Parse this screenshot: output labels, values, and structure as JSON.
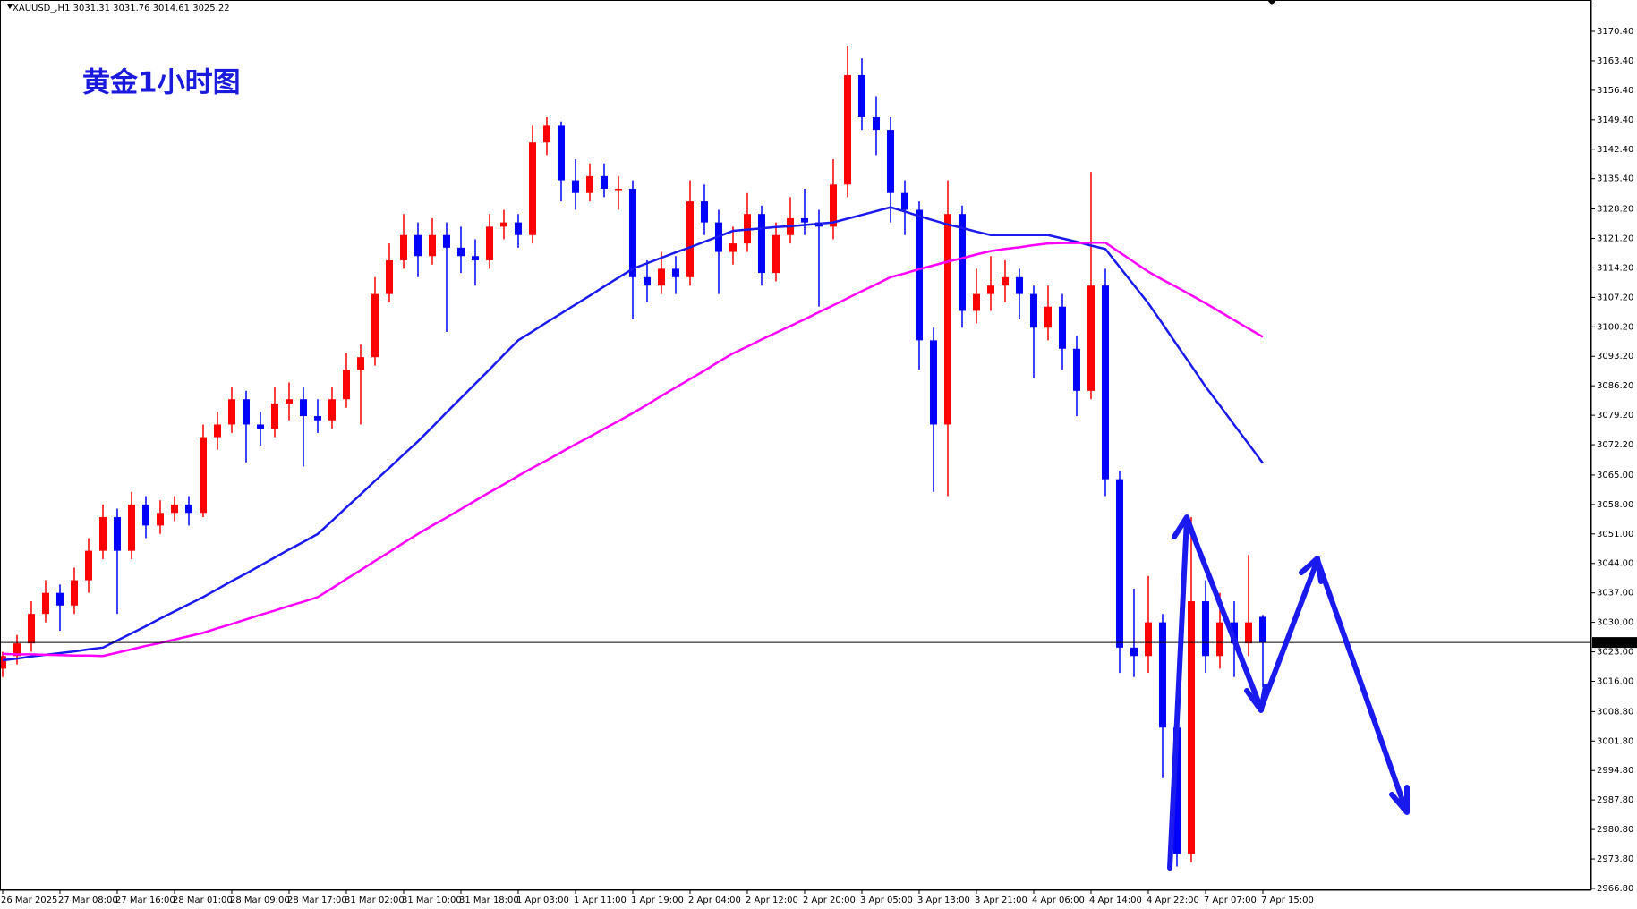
{
  "chart_data": {
    "type": "candlestick",
    "title": "黄金1小时图",
    "header": "XAUUSD_,H1  3031.31 3031.76 3014.61 3025.22",
    "categories": [
      "26 Mar 2025",
      null,
      null,
      null,
      "27 Mar 08:00",
      null,
      null,
      null,
      "27 Mar 16:00",
      null,
      null,
      null,
      "28 Mar 01:00",
      null,
      null,
      null,
      "28 Mar 09:00",
      null,
      null,
      null,
      "28 Mar 17:00",
      null,
      null,
      null,
      "31 Mar 02:00",
      null,
      null,
      null,
      "31 Mar 10:00",
      null,
      null,
      null,
      "31 Mar 18:00",
      null,
      null,
      null,
      "1 Apr 03:00",
      null,
      null,
      null,
      "1 Apr 11:00",
      null,
      null,
      null,
      "1 Apr 19:00",
      null,
      null,
      null,
      "2 Apr 04:00",
      null,
      null,
      null,
      "2 Apr 12:00",
      null,
      null,
      null,
      "2 Apr 20:00",
      null,
      null,
      null,
      "3 Apr 05:00",
      null,
      null,
      null,
      "3 Apr 13:00",
      null,
      null,
      null,
      "3 Apr 21:00",
      null,
      null,
      null,
      "4 Apr 06:00",
      null,
      null,
      null,
      "4 Apr 14:00",
      null,
      null,
      null,
      "4 Apr 22:00",
      null,
      null,
      null,
      "7 Apr 07:00",
      null,
      null,
      null,
      "7 Apr 15:00"
    ],
    "open": [
      3019,
      3022,
      3025,
      3032,
      3037,
      3034,
      3040,
      3047,
      3055,
      3047,
      3058,
      3053,
      3056,
      3058,
      3056,
      3074,
      3077,
      3083,
      3077,
      3076,
      3082,
      3083,
      3079,
      3078,
      3083,
      3090,
      3093,
      3108,
      3116,
      3122,
      3117,
      3122,
      3119,
      3117,
      3116,
      3124,
      3125,
      3122,
      3144,
      3148,
      3135,
      3132,
      3136,
      3133,
      3133,
      3112,
      3110,
      3114,
      3112,
      3130,
      3125,
      3118,
      3120,
      3127,
      3113,
      3122,
      3126,
      3125,
      3124,
      3134,
      3160,
      3150,
      3147,
      3132,
      3128,
      3097,
      3077,
      3127,
      3104,
      3108,
      3110,
      3112,
      3108,
      3100,
      3105,
      3095,
      3085,
      3110,
      3064,
      3024,
      3022,
      3030,
      3005,
      2975,
      3035,
      3022,
      3030,
      3025,
      3031.31
    ],
    "high": [
      3023,
      3027,
      3035,
      3040,
      3039,
      3043,
      3050,
      3058,
      3057,
      3061,
      3060,
      3059,
      3060,
      3060,
      3077,
      3080,
      3086,
      3085,
      3080,
      3086,
      3087,
      3086,
      3083,
      3086,
      3094,
      3096,
      3112,
      3120,
      3127,
      3125,
      3126,
      3125,
      3124,
      3121,
      3127,
      3128,
      3127,
      3148,
      3150,
      3149,
      3140,
      3139,
      3139,
      3136,
      3135,
      3116,
      3118,
      3117,
      3135,
      3134,
      3128,
      3124,
      3132,
      3129,
      3125,
      3131,
      3133,
      3128,
      3140,
      3167,
      3164,
      3155,
      3150,
      3135,
      3130,
      3100,
      3135,
      3129,
      3114,
      3117,
      3116,
      3114,
      3110,
      3110,
      3108,
      3098,
      3137,
      3114,
      3066,
      3038,
      3041,
      3032,
      3010,
      3055,
      3040,
      3037,
      3035,
      3046,
      3031.76
    ],
    "low": [
      3017,
      3020,
      3023,
      3030,
      3028,
      3032,
      3037,
      3045,
      3032,
      3045,
      3050,
      3051,
      3054,
      3053,
      3055,
      3071,
      3075,
      3068,
      3072,
      3074,
      3078,
      3067,
      3075,
      3076,
      3081,
      3077,
      3091,
      3106,
      3114,
      3112,
      3115,
      3099,
      3113,
      3110,
      3114,
      3121,
      3119,
      3120,
      3141,
      3130,
      3128,
      3130,
      3131,
      3128,
      3102,
      3106,
      3108,
      3108,
      3110,
      3122,
      3108,
      3115,
      3118,
      3110,
      3111,
      3120,
      3122,
      3105,
      3121,
      3131,
      3147,
      3141,
      3125,
      3122,
      3090,
      3061,
      3060,
      3100,
      3101,
      3104,
      3106,
      3102,
      3088,
      3097,
      3090,
      3079,
      3083,
      3060,
      3018,
      3017,
      3018,
      2993,
      2972,
      2973,
      3018,
      3019,
      3017,
      3022,
      3014.61
    ],
    "close": [
      3022,
      3025,
      3032,
      3037,
      3034,
      3040,
      3047,
      3055,
      3047,
      3058,
      3053,
      3056,
      3058,
      3056,
      3074,
      3077,
      3083,
      3077,
      3076,
      3082,
      3083,
      3079,
      3078,
      3083,
      3090,
      3093,
      3108,
      3116,
      3122,
      3117,
      3122,
      3119,
      3117,
      3116,
      3124,
      3125,
      3122,
      3144,
      3148,
      3135,
      3132,
      3136,
      3133,
      3133,
      3112,
      3110,
      3114,
      3112,
      3130,
      3125,
      3118,
      3120,
      3127,
      3113,
      3122,
      3126,
      3125,
      3124,
      3134,
      3160,
      3150,
      3147,
      3132,
      3128,
      3097,
      3077,
      3127,
      3104,
      3108,
      3110,
      3112,
      3108,
      3100,
      3105,
      3095,
      3085,
      3110,
      3064,
      3024,
      3022,
      3030,
      3005,
      2975,
      3035,
      3022,
      3030,
      3025,
      3030,
      3025.22
    ],
    "up_color": "#ff0000",
    "down_color": "#0000ff",
    "lines": [
      {
        "color": "#1a1aee",
        "values": [
          3021,
          3021.4,
          3021.9,
          3022.3,
          3022.7,
          3023.1,
          3023.6,
          3024,
          3025.7,
          3027.4,
          3029.1,
          3030.9,
          3032.6,
          3034.3,
          3036,
          3037.9,
          3039.8,
          3041.6,
          3043.5,
          3045.4,
          3047.3,
          3049.1,
          3051,
          3054.1,
          3057.3,
          3060.4,
          3063.6,
          3066.7,
          3069.9,
          3073,
          3076.4,
          3079.9,
          3083.3,
          3086.7,
          3090.1,
          3093.6,
          3097,
          3099.1,
          3101.3,
          3103.4,
          3105.5,
          3107.6,
          3109.8,
          3111.9,
          3114,
          3115.3,
          3116.6,
          3117.9,
          3119.1,
          3120.4,
          3121.7,
          3123,
          3123.3,
          3123.6,
          3123.9,
          3124.1,
          3124.4,
          3124.7,
          3125,
          3125.9,
          3126.8,
          3127.7,
          3128.6,
          3127.6,
          3126.5,
          3125.5,
          3124.5,
          3123.7,
          3122.8,
          3122,
          3122,
          3122,
          3122,
          3122,
          3121.2,
          3120.4,
          3119.5,
          3118.7,
          3114.4,
          3110.1,
          3105.8,
          3100.9,
          3095.9,
          3091,
          3086,
          3081.5,
          3076.9,
          3072.4,
          3067.8
        ]
      },
      {
        "color": "#ff00ff",
        "values": [
          3022.5,
          3022.4,
          3022.4,
          3022.3,
          3022.2,
          3022.1,
          3022.1,
          3022,
          3022.8,
          3023.6,
          3024.4,
          3025.1,
          3025.9,
          3026.7,
          3027.5,
          3028.6,
          3029.6,
          3030.7,
          3031.8,
          3032.8,
          3033.9,
          3034.9,
          3036,
          3038.1,
          3040.3,
          3042.4,
          3044.6,
          3046.7,
          3048.9,
          3051,
          3053,
          3054.9,
          3056.9,
          3058.9,
          3060.9,
          3062.8,
          3064.8,
          3066.7,
          3068.5,
          3070.4,
          3072.3,
          3074.1,
          3076,
          3077.8,
          3079.7,
          3081.7,
          3083.8,
          3085.8,
          3087.8,
          3089.8,
          3091.9,
          3093.9,
          3095.5,
          3097.2,
          3098.8,
          3100.4,
          3102,
          3103.7,
          3105.3,
          3107,
          3108.7,
          3110.3,
          3112,
          3112.9,
          3113.9,
          3114.8,
          3115.7,
          3116.5,
          3117.4,
          3118.2,
          3118.7,
          3119.1,
          3119.6,
          3120,
          3120.1,
          3120.1,
          3120.2,
          3120.2,
          3117.9,
          3115.6,
          3113.3,
          3111.4,
          3109.6,
          3107.7,
          3105.8,
          3103.8,
          3101.8,
          3099.8,
          3097.8
        ]
      }
    ],
    "current_price": 3025.22,
    "ylim": [
      2966.37,
      3177.84
    ],
    "yticks": [
      {
        "value": 2966.8,
        "label": "2966.80"
      },
      {
        "value": 2973.8,
        "label": "2973.80"
      },
      {
        "value": 2980.8,
        "label": "2980.80"
      },
      {
        "value": 2987.8,
        "label": "2987.80"
      },
      {
        "value": 2994.8,
        "label": "2994.80"
      },
      {
        "value": 3001.8,
        "label": "3001.80"
      },
      {
        "value": 3008.8,
        "label": "3008.80"
      },
      {
        "value": 3016.0,
        "label": "3016.00"
      },
      {
        "value": 3023.0,
        "label": "3023.00"
      },
      {
        "value": 3030.0,
        "label": "3030.00"
      },
      {
        "value": 3037.0,
        "label": "3037.00"
      },
      {
        "value": 3044.0,
        "label": "3044.00"
      },
      {
        "value": 3051.0,
        "label": "3051.00"
      },
      {
        "value": 3058.0,
        "label": "3058.00"
      },
      {
        "value": 3065.0,
        "label": "3065.00"
      },
      {
        "value": 3072.2,
        "label": "3072.20"
      },
      {
        "value": 3079.2,
        "label": "3079.20"
      },
      {
        "value": 3086.2,
        "label": "3086.20"
      },
      {
        "value": 3093.2,
        "label": "3093.20"
      },
      {
        "value": 3100.2,
        "label": "3100.20"
      },
      {
        "value": 3107.2,
        "label": "3107.20"
      },
      {
        "value": 3114.2,
        "label": "3114.20"
      },
      {
        "value": 3121.2,
        "label": "3121.20"
      },
      {
        "value": 3128.2,
        "label": "3128.20"
      },
      {
        "value": 3135.4,
        "label": "3135.40"
      },
      {
        "value": 3142.4,
        "label": "3142.40"
      },
      {
        "value": 3149.4,
        "label": "3149.40"
      },
      {
        "value": 3156.4,
        "label": "3156.40"
      },
      {
        "value": 3163.4,
        "label": "3163.40"
      },
      {
        "value": 3170.4,
        "label": "3170.40"
      }
    ],
    "grid": false
  }
}
